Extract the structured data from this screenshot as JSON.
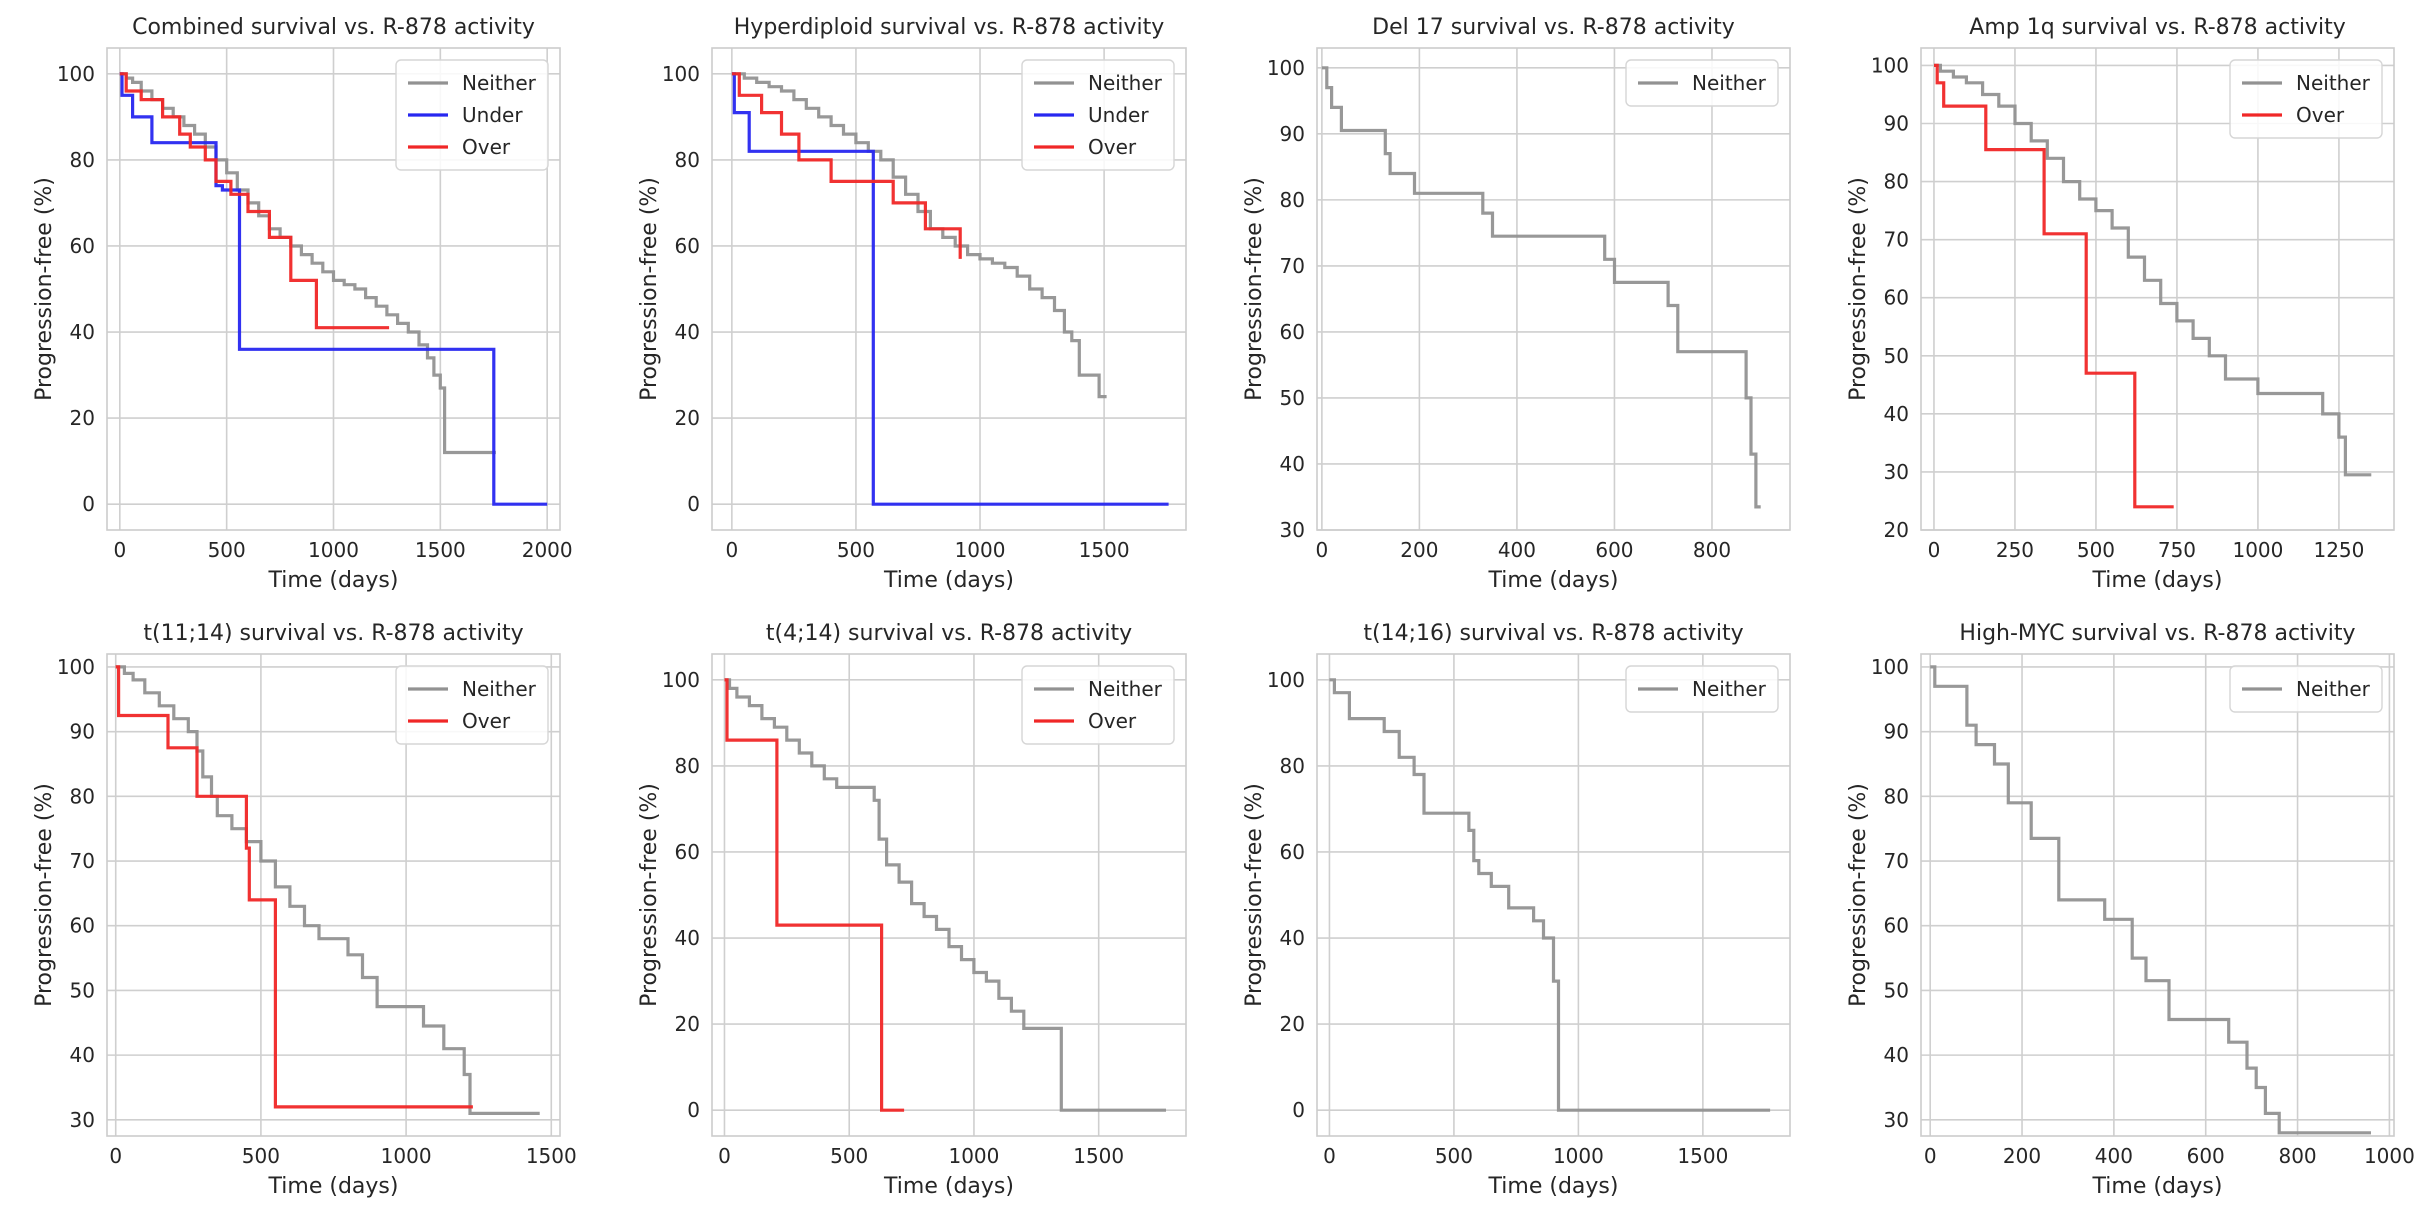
{
  "colors": {
    "Neither": "#929292",
    "Under": "#2727f0",
    "Over": "#f02727",
    "grid": "#cfcfcf",
    "spine": "#cccccc"
  },
  "chart_data": [
    {
      "type": "line",
      "step": true,
      "title": "Combined survival vs. R-878 activity",
      "xlabel": "Time (days)",
      "ylabel": "Progression-free (%)",
      "xlim": [
        -60,
        2060
      ],
      "ylim": [
        -6,
        106
      ],
      "xticks": [
        0,
        500,
        1000,
        1500,
        2000
      ],
      "yticks": [
        0,
        20,
        40,
        60,
        80,
        100
      ],
      "legend": [
        "Neither",
        "Under",
        "Over"
      ],
      "series": [
        {
          "name": "Neither",
          "x": [
            0,
            30,
            60,
            100,
            150,
            200,
            250,
            300,
            350,
            400,
            450,
            500,
            550,
            600,
            650,
            700,
            750,
            800,
            850,
            900,
            950,
            1000,
            1050,
            1100,
            1150,
            1200,
            1250,
            1300,
            1350,
            1400,
            1440,
            1470,
            1500,
            1520,
            1580,
            1600,
            1700,
            1760
          ],
          "y": [
            100,
            99,
            98,
            96,
            94,
            92,
            90,
            88,
            86,
            83,
            80,
            77,
            73,
            70,
            67,
            64,
            62,
            60,
            58,
            56,
            54,
            52,
            51,
            50,
            48,
            46,
            44,
            42,
            40,
            37,
            34,
            30,
            27,
            12,
            12,
            12,
            12,
            12
          ]
        },
        {
          "name": "Under",
          "x": [
            0,
            10,
            60,
            150,
            300,
            450,
            480,
            560,
            1750,
            2000
          ],
          "y": [
            100,
            95,
            90,
            84,
            84,
            74,
            73,
            36,
            0,
            0
          ]
        },
        {
          "name": "Over",
          "x": [
            0,
            30,
            100,
            200,
            280,
            330,
            400,
            450,
            520,
            600,
            700,
            800,
            920,
            1260
          ],
          "y": [
            100,
            96,
            94,
            90,
            86,
            83,
            80,
            75,
            72,
            68,
            62,
            52,
            41,
            41
          ]
        }
      ]
    },
    {
      "type": "line",
      "step": true,
      "title": "Hyperdiploid survival vs. R-878 activity",
      "xlabel": "Time (days)",
      "ylabel": "Progression-free (%)",
      "xlim": [
        -80,
        1830
      ],
      "ylim": [
        -6,
        106
      ],
      "xticks": [
        0,
        500,
        1000,
        1500
      ],
      "yticks": [
        0,
        20,
        40,
        60,
        80,
        100
      ],
      "legend": [
        "Neither",
        "Under",
        "Over"
      ],
      "series": [
        {
          "name": "Neither",
          "x": [
            0,
            50,
            100,
            150,
            200,
            250,
            300,
            350,
            400,
            450,
            500,
            550,
            600,
            650,
            700,
            750,
            800,
            850,
            900,
            950,
            1000,
            1050,
            1100,
            1150,
            1200,
            1250,
            1300,
            1340,
            1370,
            1400,
            1430,
            1480,
            1510
          ],
          "y": [
            100,
            99,
            98,
            97,
            96,
            94,
            92,
            90,
            88,
            86,
            84,
            82,
            80,
            76,
            72,
            68,
            64,
            62,
            60,
            58,
            57,
            56,
            55,
            53,
            50,
            48,
            45,
            40,
            38,
            30,
            30,
            25,
            25
          ]
        },
        {
          "name": "Under",
          "x": [
            0,
            10,
            70,
            570,
            1760
          ],
          "y": [
            100,
            91,
            82,
            0,
            0
          ]
        },
        {
          "name": "Over",
          "x": [
            0,
            30,
            120,
            200,
            270,
            400,
            650,
            780,
            920
          ],
          "y": [
            100,
            95,
            91,
            86,
            80,
            75,
            70,
            64,
            57
          ]
        }
      ]
    },
    {
      "type": "line",
      "step": true,
      "title": "Del 17 survival vs. R-878 activity",
      "xlabel": "Time (days)",
      "ylabel": "Progression-free (%)",
      "xlim": [
        -10,
        960
      ],
      "ylim": [
        30,
        103
      ],
      "xticks": [
        0,
        200,
        400,
        600,
        800
      ],
      "yticks": [
        30,
        40,
        50,
        60,
        70,
        80,
        90,
        100
      ],
      "legend": [
        "Neither"
      ],
      "series": [
        {
          "name": "Neither",
          "x": [
            0,
            10,
            20,
            40,
            130,
            140,
            190,
            330,
            350,
            580,
            600,
            710,
            730,
            870,
            880,
            890,
            900
          ],
          "y": [
            100,
            97,
            94,
            90.5,
            87,
            84,
            81,
            78,
            74.5,
            71,
            67.5,
            64,
            57,
            50,
            41.5,
            33.5,
            33.5
          ]
        }
      ]
    },
    {
      "type": "line",
      "step": true,
      "title": "Amp 1q survival vs. R-878 activity",
      "xlabel": "Time (days)",
      "ylabel": "Progression-free (%)",
      "xlim": [
        -40,
        1420
      ],
      "ylim": [
        20,
        103
      ],
      "xticks": [
        0,
        250,
        500,
        750,
        1000,
        1250
      ],
      "yticks": [
        20,
        30,
        40,
        50,
        60,
        70,
        80,
        90,
        100
      ],
      "legend": [
        "Neither",
        "Over"
      ],
      "series": [
        {
          "name": "Neither",
          "x": [
            0,
            20,
            60,
            100,
            150,
            200,
            250,
            300,
            350,
            400,
            450,
            500,
            550,
            600,
            650,
            700,
            750,
            800,
            850,
            900,
            1000,
            1200,
            1250,
            1270,
            1350
          ],
          "y": [
            100,
            99,
            98,
            97,
            95,
            93,
            90,
            87,
            84,
            80,
            77,
            75,
            72,
            67,
            63,
            59,
            56,
            53,
            50,
            46,
            43.5,
            40,
            36,
            29.5,
            29.5
          ]
        },
        {
          "name": "Over",
          "x": [
            0,
            10,
            30,
            160,
            340,
            470,
            620,
            740
          ],
          "y": [
            100,
            97,
            93,
            85.5,
            71,
            47,
            24,
            24
          ]
        }
      ]
    },
    {
      "type": "line",
      "step": true,
      "title": "t(11;14) survival vs. R-878 activity",
      "xlabel": "Time (days)",
      "ylabel": "Progression-free (%)",
      "xlim": [
        -30,
        1530
      ],
      "ylim": [
        27.5,
        102
      ],
      "xticks": [
        0,
        500,
        1000,
        1500
      ],
      "yticks": [
        30,
        40,
        50,
        60,
        70,
        80,
        90,
        100
      ],
      "legend": [
        "Neither",
        "Over"
      ],
      "series": [
        {
          "name": "Neither",
          "x": [
            0,
            30,
            60,
            100,
            150,
            200,
            250,
            280,
            300,
            330,
            350,
            400,
            450,
            500,
            550,
            600,
            650,
            700,
            800,
            850,
            900,
            1000,
            1060,
            1130,
            1200,
            1220,
            1460
          ],
          "y": [
            100,
            99,
            98,
            96,
            94,
            92,
            90,
            87,
            83,
            80,
            77,
            75,
            73,
            70,
            66,
            63,
            60,
            58,
            55.5,
            52,
            47.5,
            47.5,
            44.5,
            41,
            37,
            31,
            31
          ]
        },
        {
          "name": "Over",
          "x": [
            0,
            10,
            180,
            280,
            450,
            460,
            550,
            1230
          ],
          "y": [
            100,
            92.5,
            87.5,
            80,
            72,
            64,
            32,
            32
          ]
        }
      ]
    },
    {
      "type": "line",
      "step": true,
      "title": "t(4;14) survival vs. R-878 activity",
      "xlabel": "Time (days)",
      "ylabel": "Progression-free (%)",
      "xlim": [
        -50,
        1850
      ],
      "ylim": [
        -6,
        106
      ],
      "xticks": [
        0,
        500,
        1000,
        1500
      ],
      "yticks": [
        0,
        20,
        40,
        60,
        80,
        100
      ],
      "legend": [
        "Neither",
        "Over"
      ],
      "series": [
        {
          "name": "Neither",
          "x": [
            0,
            20,
            50,
            100,
            150,
            200,
            250,
            300,
            350,
            400,
            450,
            550,
            600,
            620,
            650,
            700,
            750,
            800,
            850,
            900,
            950,
            1000,
            1050,
            1100,
            1150,
            1200,
            1350,
            1770
          ],
          "y": [
            100,
            98,
            96,
            94,
            91,
            89,
            86,
            83,
            80,
            77,
            75,
            75,
            72,
            63,
            57,
            53,
            48,
            45,
            42,
            38,
            35,
            32,
            30,
            26,
            23,
            19,
            0,
            0
          ]
        },
        {
          "name": "Over",
          "x": [
            0,
            10,
            210,
            630,
            720
          ],
          "y": [
            100,
            86,
            43,
            0,
            0
          ]
        }
      ]
    },
    {
      "type": "line",
      "step": true,
      "title": "t(14;16) survival vs. R-878 activity",
      "xlabel": "Time (days)",
      "ylabel": "Progression-free (%)",
      "xlim": [
        -50,
        1850
      ],
      "ylim": [
        -6,
        106
      ],
      "xticks": [
        0,
        500,
        1000,
        1500
      ],
      "yticks": [
        0,
        20,
        40,
        60,
        80,
        100
      ],
      "legend": [
        "Neither"
      ],
      "series": [
        {
          "name": "Neither",
          "x": [
            0,
            20,
            80,
            220,
            280,
            340,
            380,
            560,
            580,
            600,
            650,
            720,
            820,
            860,
            900,
            920,
            1770
          ],
          "y": [
            100,
            97,
            91,
            88,
            82,
            78,
            69,
            65,
            58,
            55,
            52,
            47,
            44,
            40,
            30,
            0,
            0
          ]
        }
      ]
    },
    {
      "type": "line",
      "step": true,
      "title": "High-MYC survival vs. R-878 activity",
      "xlabel": "Time (days)",
      "ylabel": "Progression-free (%)",
      "xlim": [
        -20,
        1010
      ],
      "ylim": [
        27.5,
        102
      ],
      "xticks": [
        0,
        200,
        400,
        600,
        800,
        1000
      ],
      "yticks": [
        30,
        40,
        50,
        60,
        70,
        80,
        90,
        100
      ],
      "legend": [
        "Neither"
      ],
      "series": [
        {
          "name": "Neither",
          "x": [
            0,
            10,
            80,
            100,
            140,
            170,
            220,
            280,
            380,
            440,
            470,
            520,
            570,
            650,
            690,
            710,
            730,
            760,
            780,
            960
          ],
          "y": [
            100,
            97,
            91,
            88,
            85,
            79,
            73.5,
            64,
            61,
            55,
            51.5,
            45.5,
            45.5,
            42,
            38,
            35,
            31,
            28,
            28,
            28
          ]
        }
      ]
    }
  ]
}
